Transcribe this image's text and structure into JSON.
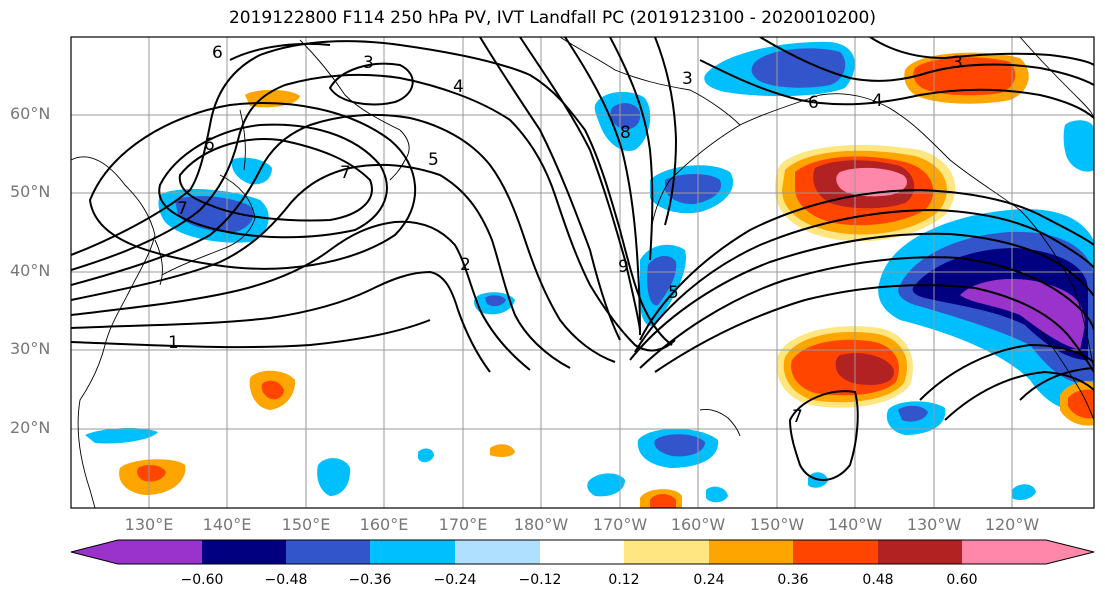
{
  "title": "2019122800 F114 250 hPa PV, IVT Landfall PC (2019123100 - 2020010200)",
  "map": {
    "latitude_labels": [
      "60°N",
      "50°N",
      "40°N",
      "30°N",
      "20°N"
    ],
    "longitude_labels": [
      "130°E",
      "140°E",
      "150°E",
      "160°E",
      "170°E",
      "180°W",
      "170°W",
      "160°W",
      "150°W",
      "140°W",
      "130°W",
      "120°W"
    ],
    "contour_labels": [
      "6",
      "3",
      "4",
      "6",
      "7",
      "7",
      "5",
      "2",
      "1",
      "8",
      "9",
      "5",
      "6",
      "3",
      "4",
      "7",
      "3"
    ]
  },
  "colorbar": {
    "tick_labels": [
      "−0.60",
      "−0.48",
      "−0.36",
      "−0.24",
      "−0.12",
      "0.12",
      "0.24",
      "0.36",
      "0.48",
      "0.60"
    ],
    "colors": [
      "#9933cc",
      "#000080",
      "#3355cc",
      "#00bfff",
      "#b0e0ff",
      "#ffffff",
      "#ffe680",
      "#ffa500",
      "#ff4500",
      "#b22222",
      "#ff88aa"
    ]
  }
}
